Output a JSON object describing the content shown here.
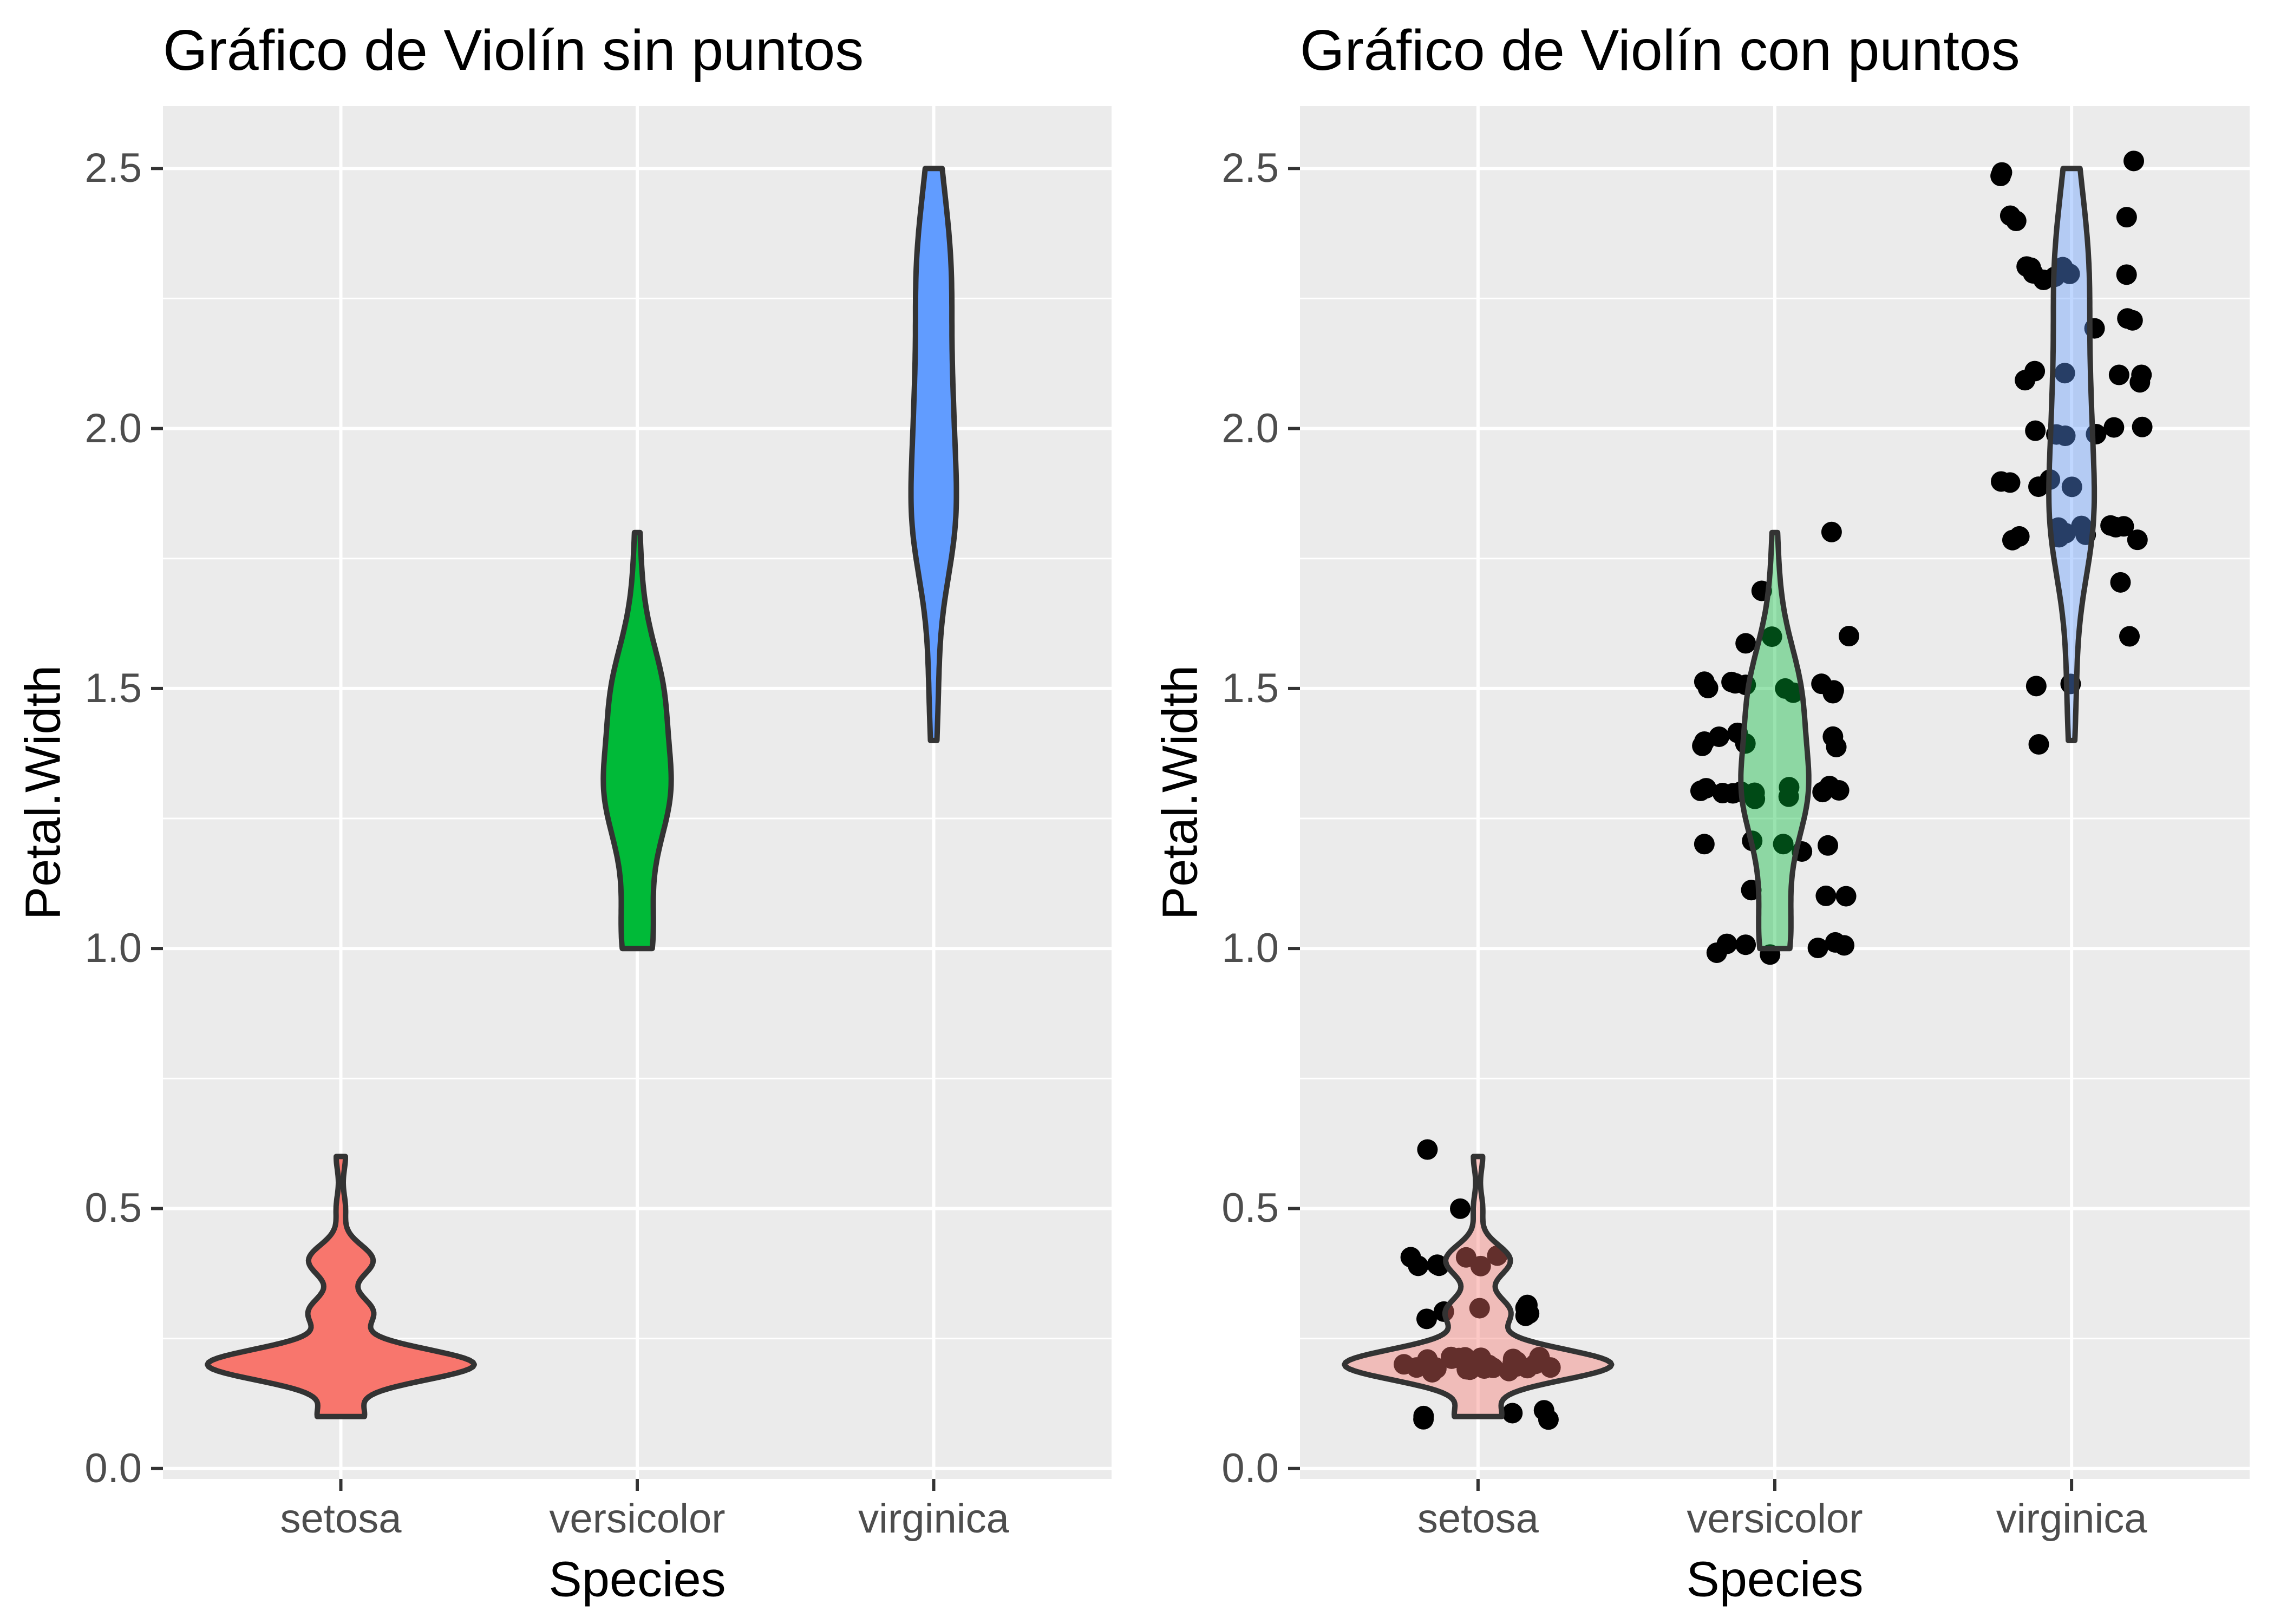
{
  "figure": {
    "background": "#FFFFFF"
  },
  "chart_data": {
    "type": "violin",
    "panels": [
      {
        "title": "Gráfico de Violín sin puntos",
        "show_points": false,
        "fill_opacity": 1.0
      },
      {
        "title": "Gráfico de Violín con puntos",
        "show_points": true,
        "fill_opacity": 0.4
      }
    ],
    "xlabel": "Species",
    "ylabel": "Petal.Width",
    "categories": [
      "setosa",
      "versicolor",
      "virginica"
    ],
    "y_ticks": [
      {
        "value": 0.0,
        "label": "0.0"
      },
      {
        "value": 0.5,
        "label": "0.5"
      },
      {
        "value": 1.0,
        "label": "1.0"
      },
      {
        "value": 1.5,
        "label": "1.5"
      },
      {
        "value": 2.0,
        "label": "2.0"
      },
      {
        "value": 2.5,
        "label": "2.5"
      }
    ],
    "y_minor_ticks": [
      0.25,
      0.75,
      1.25,
      1.75,
      2.25
    ],
    "ylim": [
      -0.02,
      2.62
    ],
    "violin_max_width": 0.9,
    "jitter_width": 0.26,
    "jitter_height": 0.015,
    "point_radius": 19,
    "point_color": "#000000",
    "outline_color": "#333333",
    "panel_background": "#EBEBEB",
    "grid_color": "#FFFFFF",
    "axis_text_color": "#4D4D4D",
    "series": [
      {
        "name": "setosa",
        "color": "#F8766D",
        "values": [
          0.2,
          0.2,
          0.2,
          0.2,
          0.2,
          0.4,
          0.3,
          0.2,
          0.2,
          0.1,
          0.2,
          0.2,
          0.1,
          0.1,
          0.2,
          0.4,
          0.4,
          0.3,
          0.3,
          0.3,
          0.2,
          0.4,
          0.2,
          0.5,
          0.2,
          0.2,
          0.4,
          0.2,
          0.2,
          0.2,
          0.2,
          0.4,
          0.1,
          0.2,
          0.2,
          0.2,
          0.2,
          0.1,
          0.2,
          0.2,
          0.3,
          0.3,
          0.2,
          0.6,
          0.4,
          0.3,
          0.2,
          0.2,
          0.2,
          0.2
        ]
      },
      {
        "name": "versicolor",
        "color": "#00BA38",
        "values": [
          1.4,
          1.5,
          1.5,
          1.3,
          1.5,
          1.3,
          1.6,
          1.0,
          1.3,
          1.4,
          1.0,
          1.5,
          1.0,
          1.4,
          1.3,
          1.4,
          1.5,
          1.0,
          1.5,
          1.1,
          1.8,
          1.3,
          1.5,
          1.2,
          1.3,
          1.4,
          1.4,
          1.7,
          1.5,
          1.0,
          1.1,
          1.0,
          1.2,
          1.6,
          1.5,
          1.6,
          1.5,
          1.3,
          1.3,
          1.3,
          1.2,
          1.4,
          1.2,
          1.0,
          1.3,
          1.2,
          1.3,
          1.3,
          1.1,
          1.3
        ]
      },
      {
        "name": "virginica",
        "color": "#619CFF",
        "values": [
          2.5,
          1.9,
          2.1,
          1.8,
          2.2,
          2.1,
          1.7,
          1.8,
          1.8,
          2.5,
          2.0,
          1.9,
          2.1,
          2.0,
          2.4,
          2.3,
          1.8,
          2.2,
          2.3,
          1.5,
          2.3,
          2.0,
          2.0,
          1.8,
          2.1,
          1.8,
          1.8,
          1.8,
          2.1,
          1.6,
          1.9,
          2.0,
          2.2,
          1.5,
          1.4,
          2.3,
          2.4,
          1.8,
          1.8,
          2.1,
          2.4,
          2.3,
          1.9,
          2.3,
          2.5,
          2.3,
          1.9,
          2.0,
          2.3,
          1.8
        ]
      }
    ]
  }
}
